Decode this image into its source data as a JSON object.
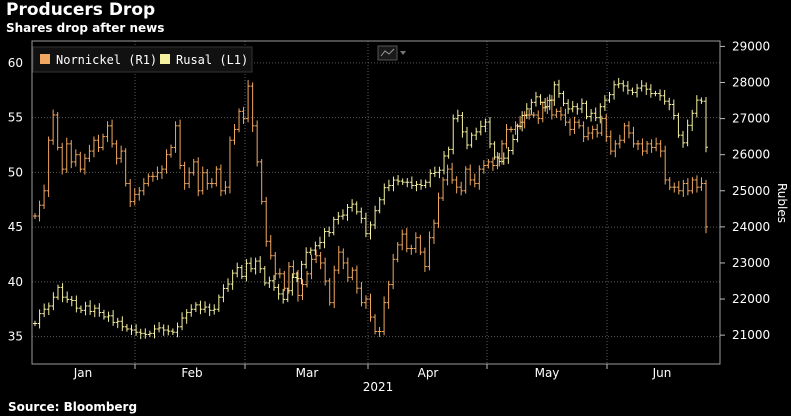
{
  "chart_data": {
    "type": "line",
    "title": "Producers Drop",
    "subtitle": "Shares drop after news",
    "source": "Source: Bloomberg",
    "year_label": "2021",
    "x_ticks": [
      "Jan",
      "Feb",
      "Mar",
      "Apr",
      "May",
      "Jun"
    ],
    "left_axis": {
      "ticks": [
        35,
        40,
        45,
        50,
        55,
        60
      ],
      "range": [
        32.5,
        62
      ]
    },
    "right_axis": {
      "label": "Rubles",
      "ticks": [
        21000,
        22000,
        23000,
        24000,
        25000,
        26000,
        27000,
        28000,
        29000
      ],
      "range": [
        20200,
        29150
      ]
    },
    "grid": true,
    "legend_position": "top-left",
    "series": [
      {
        "name": "Nornickel (R1)",
        "axis": "right",
        "color": "#f0a860",
        "values": [
          24300,
          24600,
          25000,
          26400,
          27100,
          26200,
          25600,
          26300,
          25800,
          26000,
          25600,
          25900,
          26100,
          26400,
          26200,
          26500,
          26800,
          26300,
          25900,
          26100,
          25200,
          24700,
          24900,
          25000,
          25200,
          25400,
          25400,
          25500,
          25600,
          26000,
          26200,
          26800,
          25700,
          25200,
          25500,
          25800,
          25000,
          25500,
          25200,
          25200,
          25600,
          25000,
          25100,
          26400,
          26700,
          27200,
          27000,
          27900,
          26800,
          25800,
          24700,
          23600,
          23200,
          22700,
          22700,
          22300,
          22900,
          22700,
          22100,
          22400,
          22700,
          23100,
          23200,
          23000,
          22500,
          21900,
          22800,
          23300,
          23000,
          22600,
          22800,
          22300,
          21900,
          22000,
          21500,
          21100,
          21100,
          21900,
          22400,
          23100,
          23500,
          23800,
          23400,
          23400,
          23700,
          23300,
          22900,
          23700,
          24100,
          24800,
          25300,
          25600,
          25300,
          25100,
          25000,
          25600,
          25300,
          25200,
          25600,
          25700,
          25800,
          25700,
          25900,
          26300,
          26700,
          26700,
          26800,
          26900,
          27100,
          27100,
          27100,
          27000,
          27300,
          27500,
          27100,
          27200,
          27100,
          26900,
          26700,
          26900,
          26800,
          26500,
          26600,
          26700,
          26600,
          27000,
          26500,
          26100,
          26300,
          26400,
          26800,
          26600,
          26300,
          26300,
          26100,
          26300,
          26200,
          26300,
          26100,
          25300,
          25100,
          25100,
          25000,
          25200,
          25000,
          25300,
          25100,
          25200,
          24000
        ]
      },
      {
        "name": "Rusal (L1)",
        "axis": "left",
        "color": "#f5f0a0",
        "values": [
          36.2,
          37.1,
          37.5,
          37.8,
          38.6,
          39.5,
          38.6,
          38.4,
          38.3,
          37.6,
          37.4,
          37.8,
          37.3,
          37.6,
          37.2,
          36.8,
          36.9,
          36.3,
          36.4,
          35.9,
          35.7,
          35.6,
          35.4,
          35.3,
          35.2,
          35.3,
          35.7,
          35.8,
          35.6,
          35.5,
          35.4,
          35.9,
          36.7,
          37.2,
          37.5,
          37.9,
          37.5,
          37.7,
          37.4,
          37.5,
          38.6,
          39.4,
          39.8,
          40.8,
          41.3,
          40.5,
          41.7,
          41.2,
          41.9,
          41.2,
          39.9,
          40.1,
          39.5,
          38.9,
          38.4,
          39.2,
          40.4,
          40.3,
          41.6,
          42.7,
          42.9,
          43.3,
          43.6,
          44.6,
          44.5,
          45.7,
          46.0,
          46.1,
          46.8,
          47.1,
          46.4,
          45.8,
          44.4,
          45.2,
          46.5,
          47.5,
          48.6,
          48.8,
          49.3,
          49.2,
          49.1,
          49.1,
          48.8,
          48.9,
          48.8,
          49.1,
          49.9,
          50.0,
          50.2,
          51.5,
          52.1,
          54.9,
          55.2,
          53.7,
          52.5,
          53.4,
          53.7,
          54.2,
          54.6,
          52.6,
          51.4,
          51.0,
          51.3,
          52.0,
          53.0,
          54.2,
          55.2,
          55.8,
          56.4,
          56.9,
          56.4,
          56.0,
          56.6,
          58.0,
          57.2,
          56.3,
          55.8,
          56.0,
          55.8,
          56.3,
          55.1,
          55.4,
          55.0,
          56.0,
          56.6,
          57.1,
          58.0,
          58.1,
          57.9,
          57.5,
          57.3,
          57.7,
          57.9,
          57.6,
          57.2,
          57.2,
          57.0,
          56.5,
          56.2,
          55.2,
          53.4,
          52.7,
          54.3,
          55.4,
          56.6,
          56.5,
          52.3
        ]
      }
    ]
  },
  "toolbar_icon": "line-chart-icon"
}
